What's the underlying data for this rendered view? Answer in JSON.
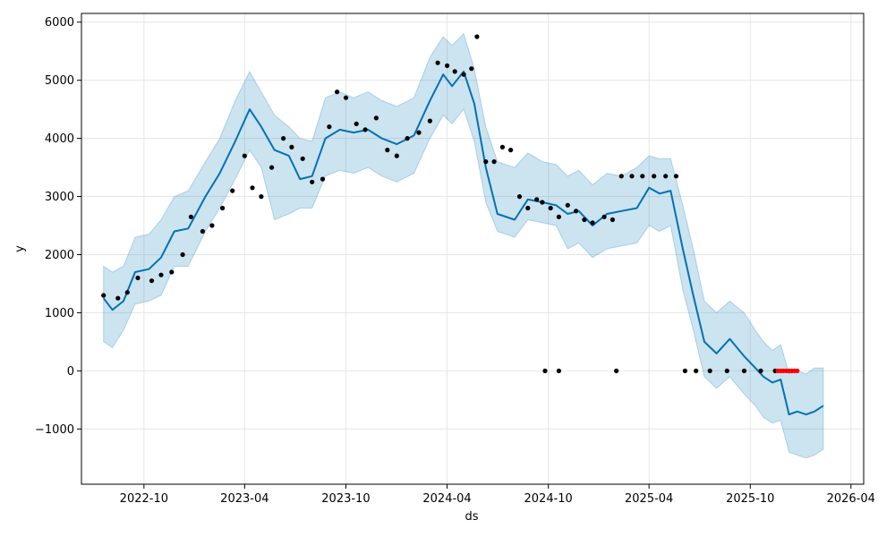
{
  "chart_data": {
    "type": "line",
    "title": "",
    "xlabel": "ds",
    "ylabel": "y",
    "grid": true,
    "legend": "none",
    "xlim": [
      "2022-06-10",
      "2026-04-24"
    ],
    "ylim": [
      -1950,
      6150
    ],
    "x_ticks": [
      "2022-10",
      "2023-04",
      "2023-10",
      "2024-04",
      "2024-10",
      "2025-04",
      "2025-10",
      "2026-04"
    ],
    "y_ticks": [
      -1000,
      0,
      1000,
      2000,
      3000,
      4000,
      5000,
      6000
    ],
    "colors": {
      "forecast_line": "#0072B2",
      "uncertainty_band": "#0072B2",
      "observed_points": "#000000",
      "recent_points": "#ff0000",
      "grid": "#e6e6e6"
    },
    "series": [
      {
        "kind": "forecast",
        "x": [
          "2022-07-20",
          "2022-08-05",
          "2022-08-25",
          "2022-09-15",
          "2022-10-10",
          "2022-11-01",
          "2022-11-25",
          "2022-12-20",
          "2023-01-20",
          "2023-02-15",
          "2023-03-15",
          "2023-04-10",
          "2023-05-01",
          "2023-05-25",
          "2023-06-20",
          "2023-07-10",
          "2023-08-01",
          "2023-08-25",
          "2023-09-20",
          "2023-10-15",
          "2023-11-10",
          "2023-12-05",
          "2024-01-01",
          "2024-02-01",
          "2024-03-01",
          "2024-03-25",
          "2024-04-10",
          "2024-05-01",
          "2024-05-20",
          "2024-06-10",
          "2024-07-01",
          "2024-08-01",
          "2024-08-25",
          "2024-09-20",
          "2024-10-15",
          "2024-11-05",
          "2024-11-25",
          "2024-12-20",
          "2025-01-15",
          "2025-02-10",
          "2025-03-10",
          "2025-04-01",
          "2025-04-20",
          "2025-05-10",
          "2025-06-01",
          "2025-06-20",
          "2025-07-10",
          "2025-08-01",
          "2025-08-25",
          "2025-09-20",
          "2025-10-10",
          "2025-10-25",
          "2025-11-10",
          "2025-11-25",
          "2025-12-10",
          "2025-12-25",
          "2026-01-10",
          "2026-01-25",
          "2026-02-10"
        ],
        "yhat": [
          1250,
          1050,
          1200,
          1700,
          1750,
          1950,
          2400,
          2450,
          3000,
          3400,
          3950,
          4500,
          4200,
          3800,
          3700,
          3300,
          3350,
          4000,
          4150,
          4100,
          4150,
          4000,
          3900,
          4050,
          4650,
          5100,
          4900,
          5150,
          4600,
          3500,
          2700,
          2600,
          2950,
          2900,
          2850,
          2700,
          2750,
          2500,
          2700,
          2750,
          2800,
          3150,
          3050,
          3100,
          2100,
          1300,
          500,
          300,
          550,
          250,
          50,
          -100,
          -200,
          -150,
          -750,
          -700,
          -750,
          -700,
          -600
        ],
        "lower": [
          500,
          400,
          700,
          1150,
          1200,
          1300,
          1800,
          1800,
          2400,
          2800,
          3300,
          3800,
          3500,
          2600,
          2700,
          2800,
          2800,
          3350,
          3450,
          3400,
          3500,
          3350,
          3250,
          3400,
          4000,
          4400,
          4250,
          4500,
          3950,
          2900,
          2400,
          2300,
          2600,
          2550,
          2500,
          2100,
          2200,
          1950,
          2100,
          2150,
          2200,
          2500,
          2400,
          2500,
          1400,
          700,
          -100,
          -300,
          -100,
          -400,
          -600,
          -800,
          -900,
          -850,
          -1400,
          -1450,
          -1500,
          -1450,
          -1350
        ],
        "upper": [
          1800,
          1700,
          1800,
          2300,
          2350,
          2600,
          3000,
          3100,
          3600,
          4000,
          4650,
          5150,
          4800,
          4400,
          4200,
          4000,
          3950,
          4700,
          4800,
          4700,
          4800,
          4650,
          4550,
          4700,
          5400,
          5750,
          5600,
          5800,
          5200,
          4200,
          3600,
          3500,
          3750,
          3600,
          3550,
          3350,
          3450,
          3200,
          3400,
          3350,
          3500,
          3700,
          3650,
          3650,
          2850,
          2100,
          1200,
          1000,
          1200,
          1000,
          700,
          500,
          350,
          450,
          -50,
          0,
          -50,
          50,
          50
        ]
      },
      {
        "kind": "observed",
        "x": [
          "2022-07-20",
          "2022-08-15",
          "2022-09-01",
          "2022-09-20",
          "2022-10-15",
          "2022-11-01",
          "2022-11-20",
          "2022-12-10",
          "2022-12-25",
          "2023-01-15",
          "2023-02-01",
          "2023-02-20",
          "2023-03-10",
          "2023-04-01",
          "2023-04-15",
          "2023-05-01",
          "2023-05-20",
          "2023-06-10",
          "2023-06-25",
          "2023-07-15",
          "2023-08-01",
          "2023-08-20",
          "2023-09-01",
          "2023-09-15",
          "2023-10-01",
          "2023-10-20",
          "2023-11-05",
          "2023-11-25",
          "2023-12-15",
          "2024-01-01",
          "2024-01-20",
          "2024-02-10",
          "2024-03-01",
          "2024-03-15",
          "2024-04-01",
          "2024-04-15",
          "2024-05-01",
          "2024-05-15",
          "2024-05-25",
          "2024-06-10",
          "2024-06-25",
          "2024-07-10",
          "2024-07-25",
          "2024-08-10",
          "2024-08-25",
          "2024-09-10",
          "2024-09-20",
          "2024-10-05",
          "2024-10-20",
          "2024-11-05",
          "2024-11-20",
          "2024-12-05",
          "2024-12-20",
          "2025-01-10",
          "2025-01-25",
          "2025-02-10",
          "2025-03-01",
          "2025-03-20",
          "2025-04-10",
          "2025-05-01",
          "2025-05-20",
          "2025-06-05",
          "2025-06-25",
          "2025-07-20",
          "2025-08-20",
          "2025-09-20",
          "2025-10-20",
          "2025-11-15"
        ],
        "y": [
          1300,
          1250,
          1350,
          1600,
          1550,
          1650,
          1700,
          2000,
          2650,
          2400,
          2500,
          2800,
          3100,
          3700,
          3150,
          3000,
          3500,
          4000,
          3850,
          3650,
          3250,
          3300,
          4200,
          4800,
          4700,
          4250,
          4150,
          4350,
          3800,
          3700,
          4000,
          4100,
          4300,
          5300,
          5250,
          5150,
          5100,
          5200,
          5750,
          3600,
          3600,
          3850,
          3800,
          3000,
          2800,
          2950,
          2900,
          2800,
          2650,
          2850,
          2750,
          2600,
          2550,
          2650,
          2600,
          3350,
          3350,
          3350,
          3350,
          3350,
          3350,
          0,
          0,
          0,
          0,
          0,
          0,
          0
        ]
      },
      {
        "kind": "recent",
        "x": [
          "2025-11-20",
          "2025-11-25",
          "2025-11-30",
          "2025-12-05",
          "2025-12-10",
          "2025-12-15",
          "2025-12-20",
          "2025-12-25"
        ],
        "y": [
          0,
          0,
          0,
          0,
          0,
          0,
          0,
          0
        ]
      },
      {
        "kind": "outliers",
        "x": [
          "2024-09-25",
          "2024-10-20",
          "2025-02-01"
        ],
        "y": [
          0,
          0,
          0
        ]
      }
    ]
  }
}
